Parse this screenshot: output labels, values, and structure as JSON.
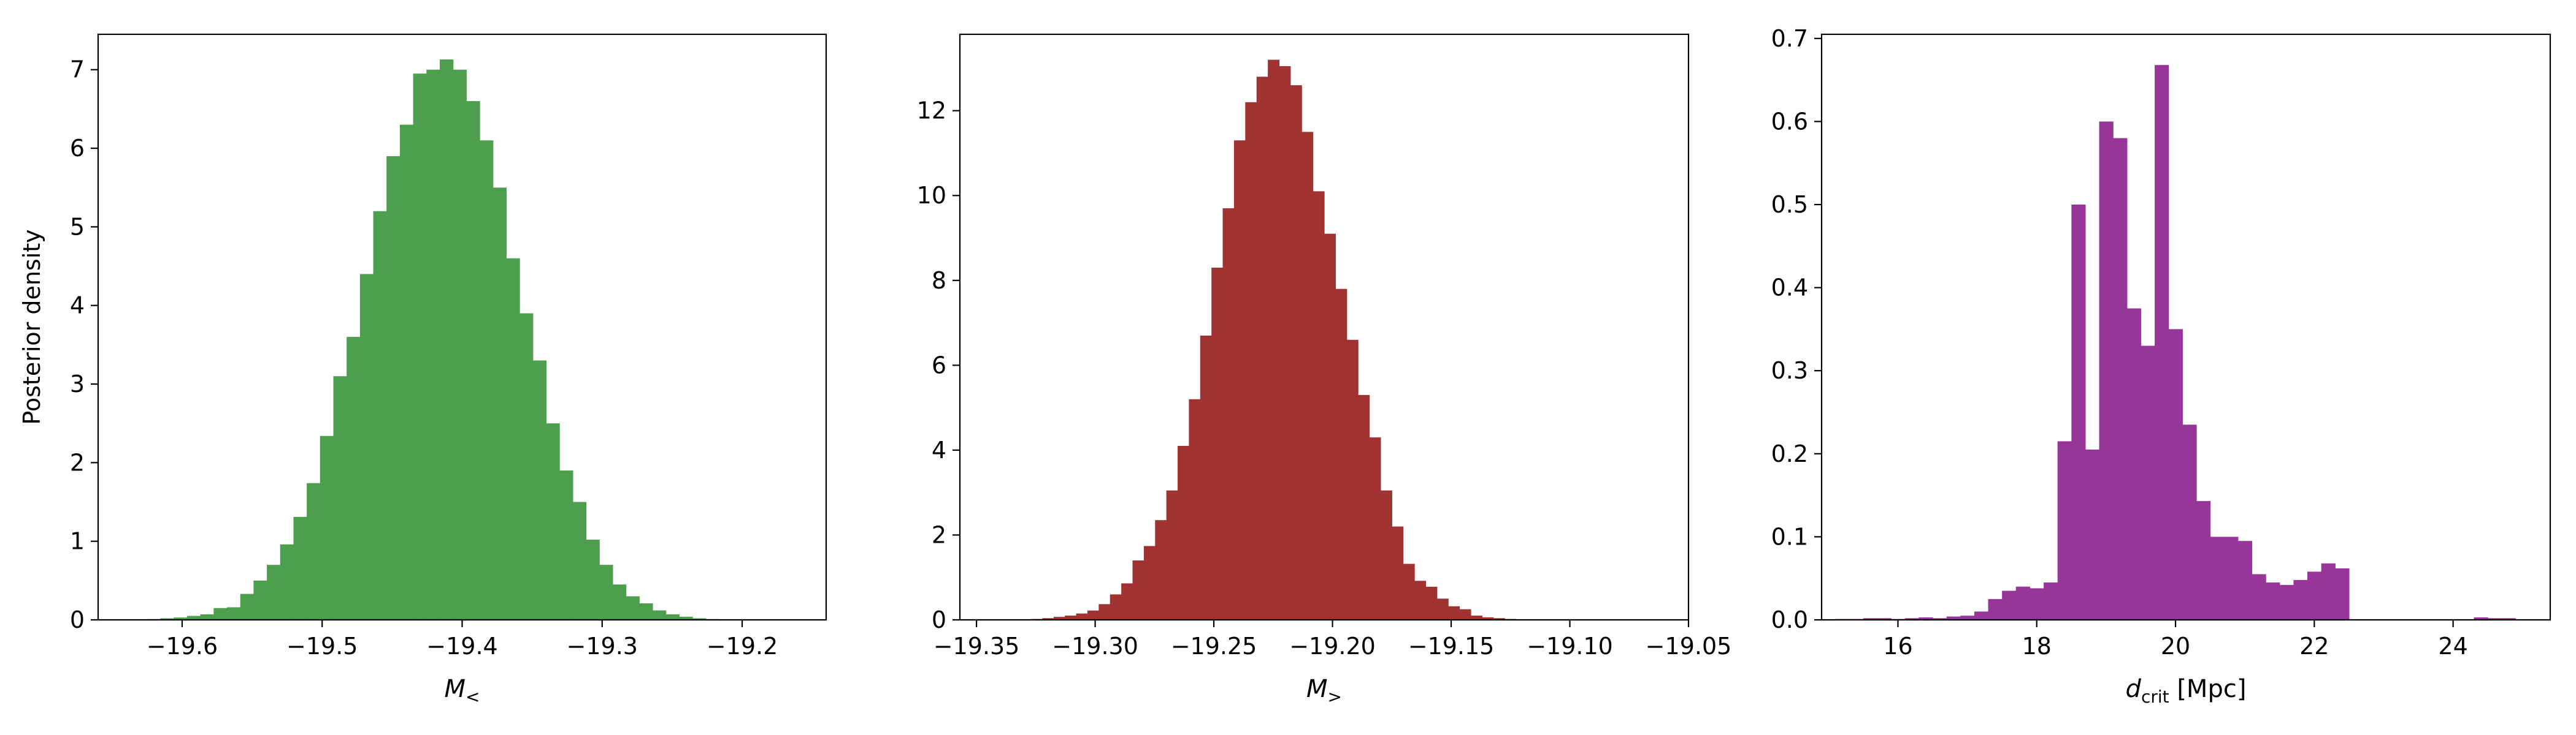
{
  "figure": {
    "ylabel": "Posterior density"
  },
  "chart_data": [
    {
      "type": "histogram",
      "color": "#4d9f4d",
      "xlabel": "M",
      "xlabel_sub": "<",
      "xlim": [
        -19.66,
        -19.14
      ],
      "ylim": [
        0,
        7.45
      ],
      "xticks": [
        -19.6,
        -19.5,
        -19.4,
        -19.3,
        -19.2
      ],
      "xtick_labels": [
        "−19.6",
        "−19.5",
        "−19.4",
        "−19.3",
        "−19.2"
      ],
      "yticks": [
        0,
        1,
        2,
        3,
        4,
        5,
        6,
        7
      ],
      "ytick_labels": [
        "0",
        "1",
        "2",
        "3",
        "4",
        "5",
        "6",
        "7"
      ],
      "bin_start": -19.625,
      "bin_width": 0.0095,
      "values": [
        0.01,
        0.02,
        0.03,
        0.05,
        0.07,
        0.15,
        0.16,
        0.33,
        0.5,
        0.7,
        0.96,
        1.31,
        1.74,
        2.34,
        3.1,
        3.6,
        4.4,
        5.2,
        5.9,
        6.3,
        6.95,
        7.0,
        7.13,
        7.0,
        6.6,
        6.1,
        5.5,
        4.6,
        3.9,
        3.3,
        2.5,
        1.9,
        1.5,
        1.02,
        0.7,
        0.45,
        0.3,
        0.21,
        0.12,
        0.07,
        0.04,
        0.02,
        0.01
      ]
    },
    {
      "type": "histogram",
      "color": "#a03232",
      "xlabel": "M",
      "xlabel_sub": ">",
      "xlim": [
        -19.357,
        -19.05
      ],
      "ylim": [
        0,
        13.8
      ],
      "xticks": [
        -19.35,
        -19.3,
        -19.25,
        -19.2,
        -19.15,
        -19.1,
        -19.05
      ],
      "xtick_labels": [
        "−19.35",
        "−19.30",
        "−19.25",
        "−19.20",
        "−19.15",
        "−19.10",
        "−19.05"
      ],
      "yticks": [
        0,
        2,
        4,
        6,
        8,
        10,
        12
      ],
      "ytick_labels": [
        "0",
        "2",
        "4",
        "6",
        "8",
        "10",
        "12"
      ],
      "bin_start": -19.327,
      "bin_width": 0.00475,
      "values": [
        0.02,
        0.04,
        0.07,
        0.1,
        0.15,
        0.22,
        0.37,
        0.6,
        0.86,
        1.4,
        1.74,
        2.35,
        3.05,
        4.1,
        5.2,
        6.7,
        8.3,
        9.7,
        11.3,
        12.2,
        12.8,
        13.2,
        13.05,
        12.6,
        11.5,
        10.1,
        9.1,
        7.8,
        6.6,
        5.3,
        4.3,
        3.05,
        2.2,
        1.32,
        0.92,
        0.78,
        0.5,
        0.32,
        0.25,
        0.1,
        0.06,
        0.04,
        0.02,
        0.01,
        0.01,
        0.01
      ]
    },
    {
      "type": "histogram",
      "color": "#983598",
      "xlabel": "d",
      "xlabel_sub": "crit",
      "xlabel_suffix": " [Mpc]",
      "xlim": [
        14.9,
        25.4
      ],
      "ylim": [
        0,
        0.705
      ],
      "xticks": [
        16,
        18,
        20,
        22,
        24
      ],
      "xtick_labels": [
        "16",
        "18",
        "20",
        "22",
        "24"
      ],
      "yticks": [
        0,
        0.1,
        0.2,
        0.3,
        0.4,
        0.5,
        0.6,
        0.7
      ],
      "ytick_labels": [
        "0.0",
        "0.1",
        "0.2",
        "0.3",
        "0.4",
        "0.5",
        "0.6",
        "0.7"
      ],
      "bin_start": 15.1,
      "bin_width": 0.2,
      "values": [
        0.001,
        0.001,
        0.002,
        0.002,
        0.001,
        0.002,
        0.003,
        0.002,
        0.004,
        0.005,
        0.01,
        0.025,
        0.035,
        0.04,
        0.038,
        0.045,
        0.215,
        0.5,
        0.205,
        0.6,
        0.58,
        0.375,
        0.33,
        0.668,
        0.35,
        0.235,
        0.143,
        0.1,
        0.1,
        0.095,
        0.055,
        0.045,
        0.042,
        0.048,
        0.058,
        0.068,
        0.062,
        0,
        0,
        0,
        0,
        0,
        0,
        0,
        0,
        0,
        0.003,
        0.002,
        0.002
      ]
    }
  ]
}
